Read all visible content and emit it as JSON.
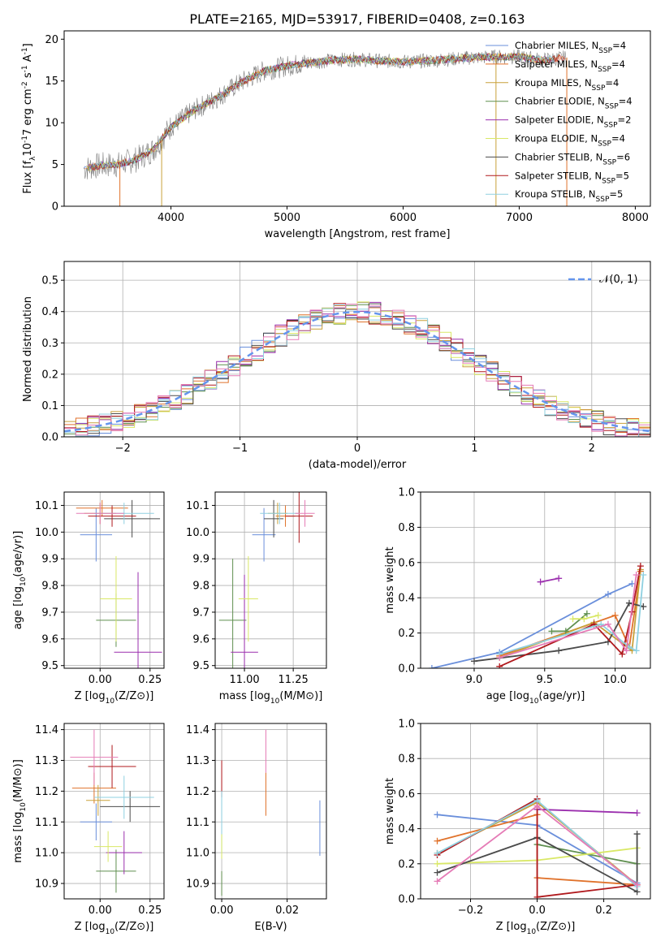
{
  "colors": {
    "chabrier_miles": "#6a8fdb",
    "salpeter_miles": "#e0722b",
    "kroupa_miles": "#c9a13a",
    "chabrier_elodie": "#5f8f4f",
    "salpeter_elodie": "#9b2fae",
    "kroupa_elodie": "#d9e866",
    "chabrier_stelib": "#4b4b4b",
    "salpeter_stelib": "#b0191d",
    "kroupa_stelib": "#8fd0e0",
    "normal": "#6495ed",
    "spectrum_grey": "#808080",
    "pink": "#e57bb6"
  },
  "chart_data": [
    {
      "id": "spectrum",
      "type": "line",
      "title": "PLATE=2165, MJD=53917, FIBERID=0408, z=0.163",
      "xlabel": "wavelength [Angstrom, rest frame]",
      "ylabel": "Flux [f_λ10^-17 erg cm^-2 s^-1 A^-1]",
      "xlim": [
        3080,
        8130
      ],
      "ylim": [
        0,
        21
      ],
      "xticks": [
        "4000",
        "5000",
        "6000",
        "7000",
        "8000"
      ],
      "yticks": [
        "0",
        "5",
        "10",
        "15",
        "20"
      ],
      "continuum": {
        "x": [
          3250,
          3400,
          3550,
          3700,
          3850,
          4000,
          4200,
          4400,
          4600,
          4800,
          5000,
          5200,
          5400,
          5600,
          5800,
          6000,
          6200,
          6400,
          6600,
          6800,
          7000,
          7200,
          7400
        ],
        "y": [
          4.5,
          4.9,
          5.0,
          5.6,
          6.8,
          9.5,
          11.5,
          13.0,
          14.8,
          16.2,
          16.8,
          17.2,
          17.5,
          17.6,
          17.4,
          17.3,
          17.4,
          17.6,
          17.8,
          17.9,
          17.9,
          17.5,
          17.8
        ]
      },
      "legend": [
        {
          "label": "Chabrier MILES, N_SSP=4",
          "color_key": "chabrier_miles"
        },
        {
          "label": "Salpeter MILES, N_SSP=4",
          "color_key": "salpeter_miles"
        },
        {
          "label": "Kroupa MILES, N_SSP=4",
          "color_key": "kroupa_miles"
        },
        {
          "label": "Chabrier ELODIE, N_SSP=4",
          "color_key": "chabrier_elodie"
        },
        {
          "label": "Salpeter ELODIE, N_SSP=2",
          "color_key": "salpeter_elodie"
        },
        {
          "label": "Kroupa ELODIE, N_SSP=4",
          "color_key": "kroupa_elodie"
        },
        {
          "label": "Chabrier STELIB, N_SSP=6",
          "color_key": "chabrier_stelib"
        },
        {
          "label": "Salpeter STELIB, N_SSP=5",
          "color_key": "salpeter_stelib"
        },
        {
          "label": "Kroupa STELIB, N_SSP=5",
          "color_key": "kroupa_stelib"
        }
      ]
    },
    {
      "id": "residuals",
      "type": "histogram",
      "xlabel": "(data-model)/error",
      "ylabel": "Normed distribution",
      "xlim": [
        -2.5,
        2.5
      ],
      "ylim": [
        0,
        0.56
      ],
      "xticks": [
        "−2",
        "−1",
        "0",
        "1",
        "2"
      ],
      "yticks": [
        "0.0",
        "0.1",
        "0.2",
        "0.3",
        "0.4",
        "0.5"
      ],
      "legend_label": "𝒩(0, 1)",
      "legend_position": "top-right",
      "bin_width": 0.1
    },
    {
      "id": "age_vs_Z",
      "type": "errorbar",
      "xlabel": "Z [log10(Z/Z⊙)]",
      "ylabel": "age  [log10(age/yr)]",
      "xlim": [
        -0.18,
        0.32
      ],
      "ylim": [
        9.49,
        10.15
      ],
      "xticks": [
        "0.00",
        "0.25"
      ],
      "yticks": [
        "9.5",
        "9.6",
        "9.7",
        "9.8",
        "9.9",
        "10.0",
        "10.1"
      ],
      "points": [
        {
          "color_key": "chabrier_miles",
          "x": -0.02,
          "xerr": 0.08,
          "y": 9.99,
          "yerr": 0.1
        },
        {
          "color_key": "salpeter_miles",
          "x": 0.01,
          "xerr": 0.13,
          "y": 10.09,
          "yerr": 0.03
        },
        {
          "color_key": "kroupa_miles",
          "x": 0.0,
          "xerr": 0.08,
          "y": 10.07,
          "yerr": 0.04
        },
        {
          "color_key": "chabrier_elodie",
          "x": 0.08,
          "xerr": 0.1,
          "y": 9.67,
          "yerr": 0.1
        },
        {
          "color_key": "salpeter_elodie",
          "x": 0.19,
          "xerr": 0.12,
          "y": 9.55,
          "yerr": 0.3
        },
        {
          "color_key": "kroupa_elodie",
          "x": 0.08,
          "xerr": 0.08,
          "y": 9.75,
          "yerr": 0.16
        },
        {
          "color_key": "chabrier_stelib",
          "x": 0.16,
          "xerr": 0.14,
          "y": 10.05,
          "yerr": 0.07
        },
        {
          "color_key": "salpeter_stelib",
          "x": 0.06,
          "xerr": 0.12,
          "y": 10.06,
          "yerr": 0.04
        },
        {
          "color_key": "kroupa_stelib",
          "x": 0.12,
          "xerr": 0.15,
          "y": 10.07,
          "yerr": 0.04
        },
        {
          "color_key": "pink",
          "x": 0.0,
          "xerr": 0.12,
          "y": 10.07,
          "yerr": 0.04
        }
      ]
    },
    {
      "id": "age_vs_mass",
      "type": "errorbar",
      "xlabel": "mass [log10(M/M⊙)]",
      "xlim": [
        10.85,
        11.42
      ],
      "ylim": [
        9.49,
        10.15
      ],
      "xticks": [
        "11.00",
        "11.25"
      ],
      "yticks": [
        "9.5",
        "9.6",
        "9.7",
        "9.8",
        "9.9",
        "10.0",
        "10.1"
      ],
      "points": [
        {
          "color_key": "chabrier_miles",
          "x": 11.1,
          "xerr": 0.06,
          "y": 9.99,
          "yerr": 0.1
        },
        {
          "color_key": "salpeter_miles",
          "x": 11.21,
          "xerr": 0.05,
          "y": 10.06,
          "yerr": 0.04
        },
        {
          "color_key": "kroupa_miles",
          "x": 11.17,
          "xerr": 0.05,
          "y": 10.07,
          "yerr": 0.04
        },
        {
          "color_key": "chabrier_elodie",
          "x": 10.94,
          "xerr": 0.07,
          "y": 9.67,
          "yerr": 0.23
        },
        {
          "color_key": "salpeter_elodie",
          "x": 11.0,
          "xerr": 0.07,
          "y": 9.55,
          "yerr": 0.29
        },
        {
          "color_key": "kroupa_elodie",
          "x": 11.02,
          "xerr": 0.05,
          "y": 9.75,
          "yerr": 0.16
        },
        {
          "color_key": "chabrier_stelib",
          "x": 11.15,
          "xerr": 0.05,
          "y": 10.05,
          "yerr": 0.07
        },
        {
          "color_key": "salpeter_stelib",
          "x": 11.28,
          "xerr": 0.07,
          "y": 10.06,
          "yerr": 0.1
        },
        {
          "color_key": "kroupa_stelib",
          "x": 11.18,
          "xerr": 0.1,
          "y": 10.07,
          "yerr": 0.04
        },
        {
          "color_key": "pink",
          "x": 11.31,
          "xerr": 0.05,
          "y": 10.07,
          "yerr": 0.05
        }
      ]
    },
    {
      "id": "mw_vs_age",
      "type": "line",
      "xlabel": "age  [log10(age/yr)]",
      "ylabel": "mass weight",
      "xlim": [
        8.62,
        10.25
      ],
      "ylim": [
        0,
        1
      ],
      "xticks": [
        "9.0",
        "9.5",
        "10.0"
      ],
      "yticks": [
        "0.0",
        "0.2",
        "0.4",
        "0.6",
        "0.8",
        "1.0"
      ],
      "series": [
        {
          "color_key": "chabrier_miles",
          "x": [
            8.7,
            9.18,
            9.95,
            10.12
          ],
          "y": [
            0.0,
            0.09,
            0.42,
            0.48
          ]
        },
        {
          "color_key": "salpeter_miles",
          "x": [
            9.18,
            10.0,
            10.1,
            10.18
          ],
          "y": [
            0.07,
            0.3,
            0.12,
            0.55
          ]
        },
        {
          "color_key": "kroupa_miles",
          "x": [
            9.18,
            9.85,
            10.12,
            10.18
          ],
          "y": [
            0.06,
            0.26,
            0.1,
            0.56
          ]
        },
        {
          "color_key": "chabrier_elodie",
          "x": [
            9.55,
            9.65,
            9.8
          ],
          "y": [
            0.21,
            0.21,
            0.31
          ]
        },
        {
          "color_key": "salpeter_elodie",
          "x": [
            9.47,
            9.6
          ],
          "y": [
            0.49,
            0.51
          ]
        },
        {
          "color_key": "kroupa_elodie",
          "x": [
            9.7,
            9.78,
            9.88
          ],
          "y": [
            0.28,
            0.28,
            0.3
          ]
        },
        {
          "color_key": "chabrier_stelib",
          "x": [
            9.0,
            9.6,
            9.95,
            10.1,
            10.2
          ],
          "y": [
            0.04,
            0.1,
            0.15,
            0.37,
            0.35
          ]
        },
        {
          "color_key": "salpeter_stelib",
          "x": [
            9.18,
            9.85,
            10.05,
            10.12,
            10.18
          ],
          "y": [
            0.01,
            0.25,
            0.08,
            0.32,
            0.58
          ]
        },
        {
          "color_key": "kroupa_stelib",
          "x": [
            9.18,
            9.9,
            10.1,
            10.15,
            10.2
          ],
          "y": [
            0.08,
            0.25,
            0.12,
            0.1,
            0.53
          ]
        },
        {
          "color_key": "pink",
          "x": [
            9.18,
            9.95,
            10.08,
            10.15
          ],
          "y": [
            0.06,
            0.25,
            0.1,
            0.53
          ]
        }
      ]
    },
    {
      "id": "mass_vs_Z",
      "type": "errorbar",
      "xlabel": "Z [log10(Z/Z⊙)]",
      "ylabel": "mass [log10(M/M⊙)]",
      "xlim": [
        -0.18,
        0.32
      ],
      "ylim": [
        10.85,
        11.42
      ],
      "xticks": [
        "0.00",
        "0.25"
      ],
      "yticks": [
        "10.9",
        "11.0",
        "11.1",
        "11.2",
        "11.3",
        "11.4"
      ],
      "points": [
        {
          "color_key": "chabrier_miles",
          "x": -0.02,
          "xerr": 0.08,
          "y": 11.1,
          "yerr": 0.06
        },
        {
          "color_key": "salpeter_miles",
          "x": -0.03,
          "xerr": 0.11,
          "y": 11.21,
          "yerr": 0.05
        },
        {
          "color_key": "kroupa_miles",
          "x": -0.01,
          "xerr": 0.06,
          "y": 11.17,
          "yerr": 0.05
        },
        {
          "color_key": "chabrier_elodie",
          "x": 0.08,
          "xerr": 0.1,
          "y": 10.94,
          "yerr": 0.07
        },
        {
          "color_key": "salpeter_elodie",
          "x": 0.12,
          "xerr": 0.09,
          "y": 11.0,
          "yerr": 0.07
        },
        {
          "color_key": "kroupa_elodie",
          "x": 0.04,
          "xerr": 0.07,
          "y": 11.02,
          "yerr": 0.05
        },
        {
          "color_key": "chabrier_stelib",
          "x": 0.15,
          "xerr": 0.15,
          "y": 11.15,
          "yerr": 0.05
        },
        {
          "color_key": "salpeter_stelib",
          "x": 0.06,
          "xerr": 0.12,
          "y": 11.28,
          "yerr": 0.07
        },
        {
          "color_key": "kroupa_stelib",
          "x": 0.12,
          "xerr": 0.15,
          "y": 11.18,
          "yerr": 0.07
        },
        {
          "color_key": "pink",
          "x": -0.03,
          "xerr": 0.12,
          "y": 11.31,
          "yerr": 0.09
        }
      ]
    },
    {
      "id": "mass_vs_ebv",
      "type": "errorbar",
      "xlabel": "E(B-V)",
      "xlim": [
        -0.002,
        0.032
      ],
      "ylim": [
        10.85,
        11.42
      ],
      "xticks": [
        "0.00",
        "0.02"
      ],
      "yticks": [
        "10.9",
        "11.0",
        "11.1",
        "11.2",
        "11.3",
        "11.4"
      ],
      "points": [
        {
          "color_key": "chabrier_miles",
          "x": 0.03,
          "y": 11.08,
          "yerr": 0.09
        },
        {
          "color_key": "salpeter_miles",
          "x": 0.0135,
          "y": 11.19,
          "yerr": 0.07
        },
        {
          "color_key": "pink",
          "x": 0.0135,
          "y": 11.33,
          "yerr": 0.07
        },
        {
          "color_key": "salpeter_stelib",
          "x": 0.0,
          "y": 11.24,
          "yerr": 0.06
        },
        {
          "color_key": "kroupa_stelib",
          "x": 0.0,
          "y": 11.1,
          "yerr": 0.1
        },
        {
          "color_key": "kroupa_elodie",
          "x": 0.0,
          "y": 11.02,
          "yerr": 0.04
        },
        {
          "color_key": "chabrier_elodie",
          "x": 0.0,
          "y": 10.9,
          "yerr": 0.04
        }
      ]
    },
    {
      "id": "mw_vs_Z",
      "type": "line",
      "xlabel": "Z [log10(Z/Z⊙)]",
      "ylabel": "mass weight",
      "xlim": [
        -0.35,
        0.34
      ],
      "ylim": [
        0,
        1
      ],
      "xticks": [
        "−0.2",
        "0.0",
        "0.2"
      ],
      "yticks": [
        "0.0",
        "0.2",
        "0.4",
        "0.6",
        "0.8",
        "1.0"
      ],
      "series": [
        {
          "color_key": "chabrier_miles",
          "x": [
            -0.3,
            0.0,
            0.3
          ],
          "y": [
            0.48,
            0.42,
            0.09
          ]
        },
        {
          "color_key": "salpeter_miles",
          "x": [
            -0.3,
            0.0,
            0.0,
            0.3
          ],
          "y": [
            0.33,
            0.48,
            0.12,
            0.08
          ]
        },
        {
          "color_key": "kroupa_miles",
          "x": [
            -0.3,
            0.0,
            0.3
          ],
          "y": [
            0.26,
            0.55,
            0.08
          ]
        },
        {
          "color_key": "chabrier_elodie",
          "x": [
            0.0,
            0.3
          ],
          "y": [
            0.31,
            0.2
          ]
        },
        {
          "color_key": "salpeter_elodie",
          "x": [
            0.0,
            0.3
          ],
          "y": [
            0.51,
            0.49
          ]
        },
        {
          "color_key": "kroupa_elodie",
          "x": [
            -0.3,
            0.0,
            0.3
          ],
          "y": [
            0.2,
            0.22,
            0.29
          ]
        },
        {
          "color_key": "chabrier_stelib",
          "x": [
            -0.3,
            0.0,
            0.3,
            0.3
          ],
          "y": [
            0.15,
            0.35,
            0.04,
            0.37
          ]
        },
        {
          "color_key": "salpeter_stelib",
          "x": [
            -0.3,
            0.0,
            0.0,
            0.3
          ],
          "y": [
            0.25,
            0.57,
            0.01,
            0.08
          ]
        },
        {
          "color_key": "kroupa_stelib",
          "x": [
            -0.3,
            0.0,
            0.3
          ],
          "y": [
            0.26,
            0.56,
            0.07
          ]
        },
        {
          "color_key": "pink",
          "x": [
            -0.3,
            0.0,
            0.3
          ],
          "y": [
            0.1,
            0.53,
            0.08
          ]
        }
      ]
    }
  ]
}
